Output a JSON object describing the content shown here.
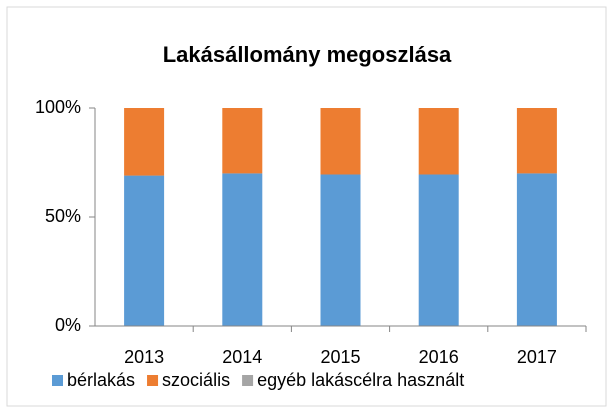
{
  "chart_data": {
    "type": "stacked_bar",
    "title": "Lakásállomány megoszlása",
    "categories": [
      "2013",
      "2014",
      "2015",
      "2016",
      "2017"
    ],
    "series": [
      {
        "name": "bérlakás",
        "color": "#5b9bd5",
        "values": [
          69,
          70,
          69.5,
          69.5,
          70
        ]
      },
      {
        "name": "szociális",
        "color": "#ed7d31",
        "values": [
          31,
          30,
          30.5,
          30.5,
          30
        ]
      },
      {
        "name": "egyéb lakáscélra használt",
        "color": "#a5a5a5",
        "values": [
          0,
          0,
          0,
          0,
          0
        ]
      }
    ],
    "ylim": [
      0,
      100
    ],
    "yticks": [
      {
        "value": 0,
        "label": "0%"
      },
      {
        "value": 50,
        "label": "50%"
      },
      {
        "value": 100,
        "label": "100%"
      }
    ],
    "grid": false,
    "legend": "bottom"
  }
}
